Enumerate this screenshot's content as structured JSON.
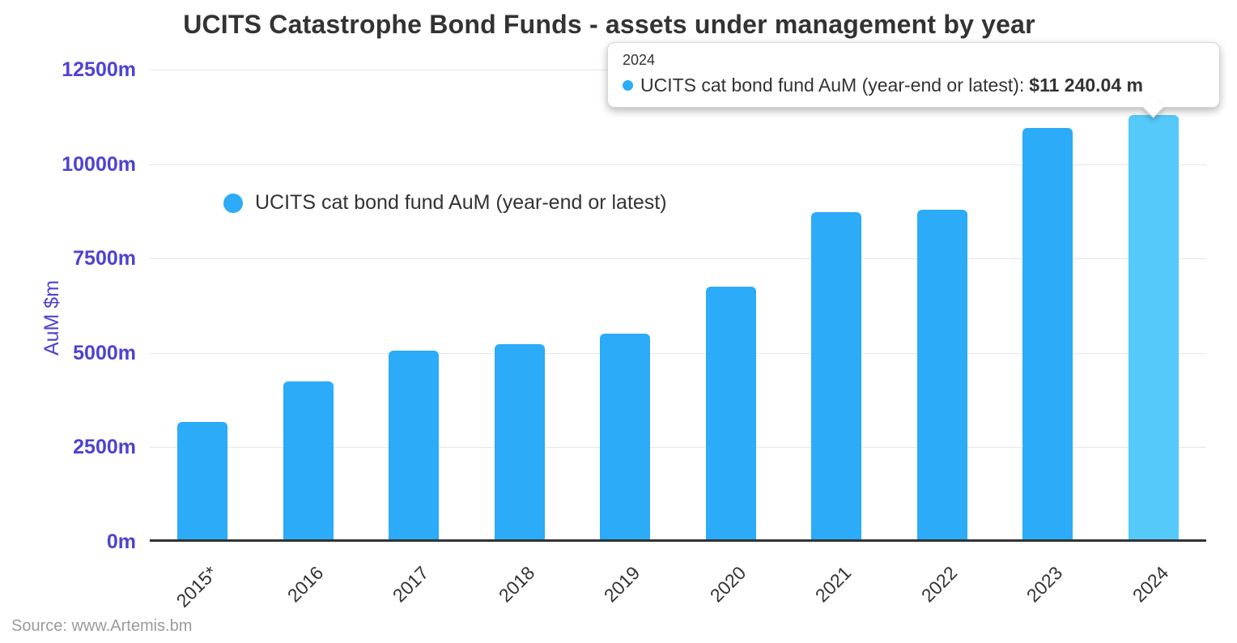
{
  "title": "UCITS Catastrophe Bond Funds - assets under management by year",
  "source": "Source: www.Artemis.bm",
  "legend": {
    "label": "UCITS cat bond fund AuM (year-end or latest)"
  },
  "y_axis": {
    "title": "AuM $m",
    "ticks": [
      {
        "label": "12500m",
        "value": 12500
      },
      {
        "label": "10000m",
        "value": 10000
      },
      {
        "label": "7500m",
        "value": 7500
      },
      {
        "label": "5000m",
        "value": 5000
      },
      {
        "label": "2500m",
        "value": 2500
      },
      {
        "label": "0m",
        "value": 0
      }
    ]
  },
  "tooltip": {
    "header": "2024",
    "series_label": "UCITS cat bond fund AuM (year-end or latest):",
    "value": "$11 240.04 m"
  },
  "colors": {
    "bar": "#2BABF8",
    "bar_highlight": "#55C9FA",
    "axis_label_purple": "#4E43D0",
    "gridline": "#E6E6E6",
    "text_dark": "#333333"
  },
  "chart_data": {
    "type": "bar",
    "title": "UCITS Catastrophe Bond Funds - assets under management by year",
    "series_name": "UCITS cat bond fund AuM (year-end or latest)",
    "categories": [
      "2015*",
      "2016",
      "2017",
      "2018",
      "2019",
      "2020",
      "2021",
      "2022",
      "2023",
      "2024"
    ],
    "values": [
      3100,
      4180,
      5000,
      5170,
      5450,
      6700,
      8660,
      8730,
      10900,
      11240.04
    ],
    "highlighted_index": 9,
    "xlabel": "",
    "ylabel": "AuM $m",
    "ylim": [
      0,
      12500
    ],
    "grid": true,
    "legend_position": "upper-left-inside"
  }
}
